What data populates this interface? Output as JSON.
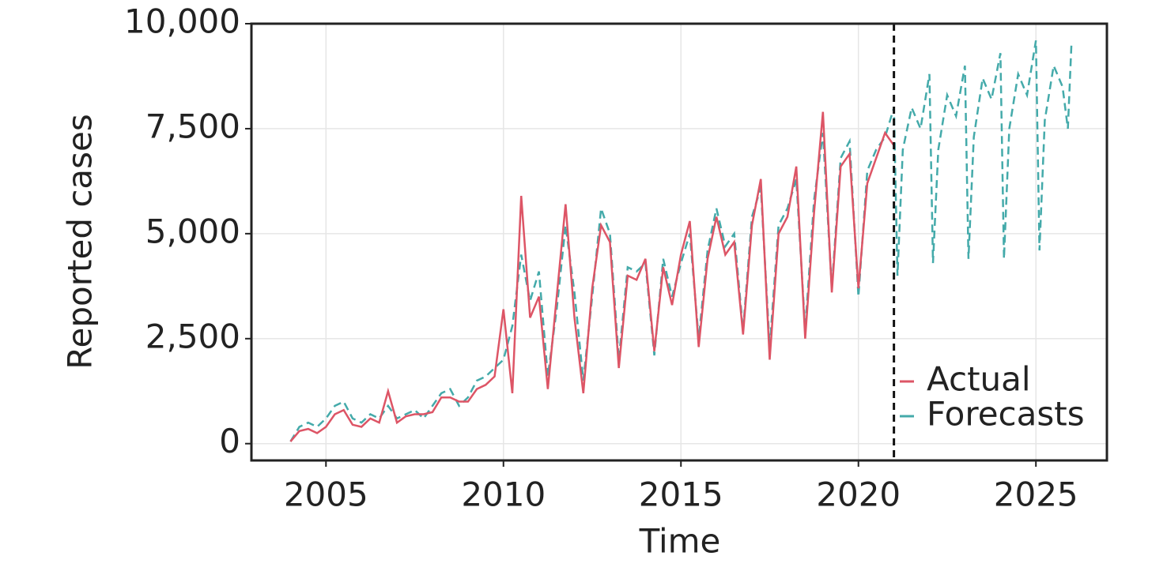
{
  "chart_data": {
    "type": "line",
    "x_label": "Time",
    "y_label": "Reported cases",
    "xlim": [
      2002.9,
      2027.0
    ],
    "xticks": [
      2005,
      2010,
      2015,
      2020,
      2025
    ],
    "ylim": [
      -400,
      10000
    ],
    "yticks": [
      0,
      {
        "value": 2500,
        "label": "2,500"
      },
      {
        "value": 5000,
        "label": "5,000"
      },
      {
        "value": 7500,
        "label": "7,500"
      },
      {
        "value": 10000,
        "label": "10,000"
      }
    ],
    "grid": true,
    "legend": "lower right",
    "vline": 2021,
    "series": [
      {
        "name": "Actual",
        "color": "#dd5566",
        "dash": "solid",
        "x": [
          2004.0,
          2004.25,
          2004.5,
          2004.75,
          2005.0,
          2005.25,
          2005.5,
          2005.75,
          2006.0,
          2006.25,
          2006.5,
          2006.75,
          2007.0,
          2007.25,
          2007.5,
          2007.75,
          2008.0,
          2008.25,
          2008.5,
          2008.75,
          2009.0,
          2009.25,
          2009.5,
          2009.75,
          2010.0,
          2010.25,
          2010.5,
          2010.75,
          2011.0,
          2011.25,
          2011.5,
          2011.75,
          2012.0,
          2012.25,
          2012.5,
          2012.75,
          2013.0,
          2013.25,
          2013.5,
          2013.75,
          2014.0,
          2014.25,
          2014.5,
          2014.75,
          2015.0,
          2015.25,
          2015.5,
          2015.75,
          2016.0,
          2016.25,
          2016.5,
          2016.75,
          2017.0,
          2017.25,
          2017.5,
          2017.75,
          2018.0,
          2018.25,
          2018.5,
          2018.75,
          2019.0,
          2019.25,
          2019.5,
          2019.75,
          2020.0,
          2020.25,
          2020.5,
          2020.75,
          2021.0
        ],
        "values": [
          50,
          300,
          350,
          250,
          400,
          700,
          800,
          450,
          400,
          600,
          500,
          1250,
          500,
          650,
          700,
          700,
          750,
          1100,
          1100,
          1000,
          1000,
          1300,
          1400,
          1600,
          3200,
          1200,
          5900,
          3000,
          3500,
          1300,
          3500,
          5700,
          3000,
          1200,
          3700,
          5200,
          4800,
          1800,
          4000,
          3900,
          4400,
          2200,
          4200,
          3300,
          4500,
          5300,
          2300,
          4400,
          5400,
          4500,
          4800,
          2600,
          5200,
          6300,
          2000,
          5000,
          5400,
          6600,
          2500,
          5500,
          7900,
          3600,
          6600,
          6900,
          3700,
          6200,
          6800,
          7400,
          7100
        ]
      },
      {
        "name": "Forecasts",
        "color": "#44aaaa",
        "dash": "dashed",
        "x": [
          2004.0,
          2004.25,
          2004.5,
          2004.75,
          2005.0,
          2005.25,
          2005.5,
          2005.75,
          2006.0,
          2006.25,
          2006.5,
          2006.75,
          2007.0,
          2007.25,
          2007.5,
          2007.75,
          2008.0,
          2008.25,
          2008.5,
          2008.75,
          2009.0,
          2009.25,
          2009.5,
          2009.75,
          2010.0,
          2010.25,
          2010.5,
          2010.75,
          2011.0,
          2011.25,
          2011.5,
          2011.75,
          2012.0,
          2012.25,
          2012.5,
          2012.75,
          2013.0,
          2013.25,
          2013.5,
          2013.75,
          2014.0,
          2014.25,
          2014.5,
          2014.75,
          2015.0,
          2015.25,
          2015.5,
          2015.75,
          2016.0,
          2016.25,
          2016.5,
          2016.75,
          2017.0,
          2017.25,
          2017.5,
          2017.75,
          2018.0,
          2018.25,
          2018.5,
          2018.75,
          2019.0,
          2019.25,
          2019.5,
          2019.75,
          2020.0,
          2020.25,
          2020.5,
          2020.75,
          2021.0,
          2021.1,
          2021.25,
          2021.5,
          2021.75,
          2022.0,
          2022.1,
          2022.25,
          2022.5,
          2022.75,
          2023.0,
          2023.1,
          2023.25,
          2023.5,
          2023.75,
          2024.0,
          2024.1,
          2024.25,
          2024.5,
          2024.75,
          2025.0,
          2025.1,
          2025.25,
          2025.5,
          2025.75,
          2025.9,
          2026.0
        ],
        "values": [
          50,
          400,
          500,
          400,
          600,
          900,
          1000,
          600,
          500,
          700,
          600,
          900,
          600,
          700,
          800,
          600,
          900,
          1200,
          1300,
          900,
          1100,
          1500,
          1600,
          1800,
          2000,
          2800,
          4500,
          3400,
          4100,
          1600,
          3200,
          5200,
          3600,
          1500,
          3500,
          5600,
          5000,
          2000,
          4200,
          4100,
          4300,
          2100,
          4400,
          3500,
          4300,
          5000,
          2500,
          4600,
          5600,
          4700,
          5000,
          2700,
          5400,
          6100,
          2300,
          5200,
          5600,
          6300,
          2700,
          5800,
          7400,
          3700,
          6800,
          7200,
          3500,
          6500,
          7000,
          7300,
          8000,
          4000,
          7000,
          8000,
          7500,
          8800,
          4300,
          7000,
          8300,
          7800,
          9000,
          4400,
          7300,
          8700,
          8200,
          9300,
          4400,
          7500,
          8800,
          8300,
          9600,
          4600,
          7700,
          9000,
          8500,
          7500,
          9500
        ]
      }
    ]
  }
}
